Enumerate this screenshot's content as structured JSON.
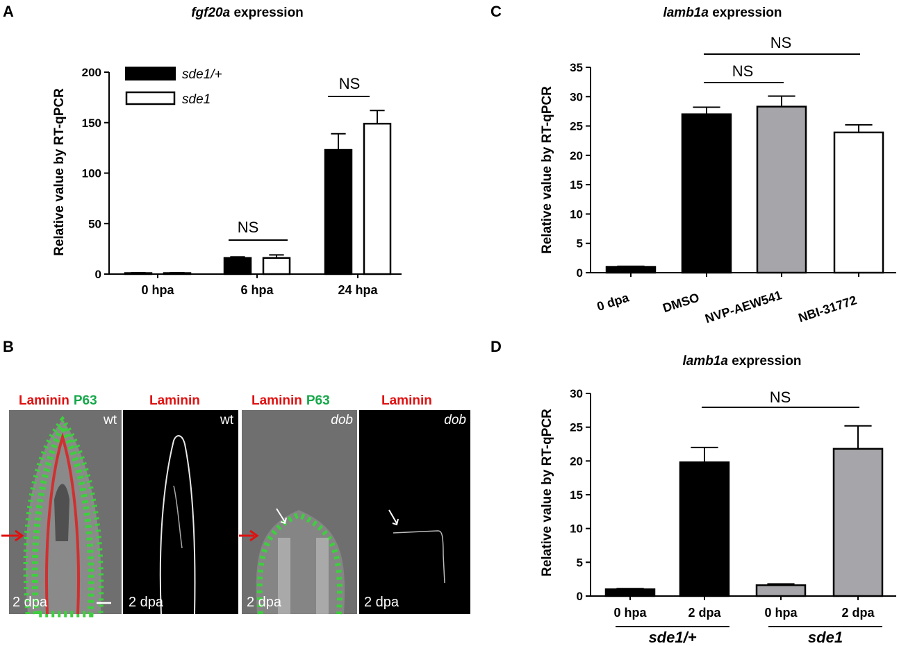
{
  "panels": {
    "A": {
      "letter": "A",
      "title_italic": "fgf20a",
      "title_rest": " expression",
      "ylabel": "Relative value by RT-qPCR",
      "yticks": [
        "0",
        "50",
        "100",
        "150",
        "200"
      ],
      "legend": [
        "sde1/+",
        "sde1"
      ],
      "ns": [
        "NS",
        "NS"
      ]
    },
    "B": {
      "letter": "B",
      "images": [
        {
          "label_red": "Laminin",
          "label_green": "P63",
          "corner": "wt",
          "time": "2 dpa"
        },
        {
          "label_red": "Laminin",
          "label_green": "",
          "corner": "wt",
          "time": "2 dpa"
        },
        {
          "label_red": "Laminin",
          "label_green": "P63",
          "corner": "dob",
          "time": "2 dpa"
        },
        {
          "label_red": "Laminin",
          "label_green": "",
          "corner": "dob",
          "time": "2 dpa"
        }
      ]
    },
    "C": {
      "letter": "C",
      "title_italic": "lamb1a",
      "title_rest": " expression",
      "ylabel": "Relative value by RT-qPCR",
      "yticks": [
        "0",
        "5",
        "10",
        "15",
        "20",
        "25",
        "30",
        "35"
      ],
      "ns": [
        "NS",
        "NS"
      ]
    },
    "D": {
      "letter": "D",
      "title_italic": "lamb1a",
      "title_rest": " expression",
      "ylabel": "Relative value by RT-qPCR",
      "yticks": [
        "0",
        "5",
        "10",
        "15",
        "20",
        "25",
        "30"
      ],
      "groups": [
        "sde1/+",
        "sde1"
      ],
      "ns": [
        "NS"
      ]
    }
  },
  "chart_data": [
    {
      "panel": "A",
      "type": "bar",
      "categories": [
        "0 hpa",
        "6 hpa",
        "24 hpa"
      ],
      "series": [
        {
          "name": "sde1/+",
          "values": [
            1,
            16,
            123
          ],
          "errors": [
            0.3,
            1,
            16
          ],
          "color": "#000000"
        },
        {
          "name": "sde1",
          "values": [
            1,
            16,
            149
          ],
          "errors": [
            0.3,
            3,
            13
          ],
          "color": "#ffffff"
        }
      ],
      "ylim": [
        0,
        200
      ],
      "title": "fgf20a expression",
      "ylabel": "Relative value by RT-qPCR"
    },
    {
      "panel": "C",
      "type": "bar",
      "categories": [
        "0 dpa",
        "DMSO",
        "NVP-AEW541",
        "NBI-31772"
      ],
      "values": [
        1,
        27,
        28.3,
        23.9
      ],
      "errors": [
        0.1,
        1.2,
        1.8,
        1.3
      ],
      "colors": [
        "#000000",
        "#000000",
        "#a6a6aa",
        "#ffffff"
      ],
      "ylim": [
        0,
        35
      ],
      "title": "lamb1a expression",
      "ylabel": "Relative value by RT-qPCR"
    },
    {
      "panel": "D",
      "type": "bar",
      "categories": [
        "0 hpa",
        "2 dpa",
        "0 hpa",
        "2 dpa"
      ],
      "groups": [
        "sde1/+",
        "sde1"
      ],
      "values": [
        1,
        19.8,
        1.6,
        21.8
      ],
      "errors": [
        0.1,
        2.2,
        0.2,
        3.4
      ],
      "colors": [
        "#000000",
        "#000000",
        "#a6a6aa",
        "#a6a6aa"
      ],
      "ylim": [
        0,
        30
      ],
      "title": "lamb1a expression",
      "ylabel": "Relative value by RT-qPCR"
    }
  ]
}
